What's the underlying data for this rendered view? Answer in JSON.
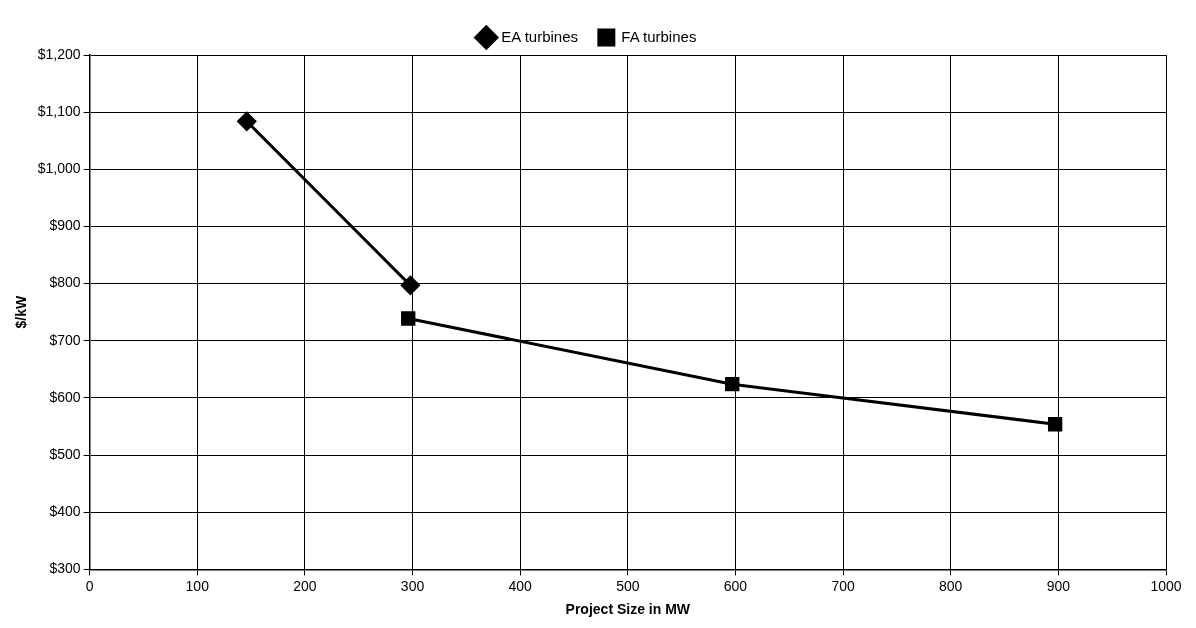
{
  "chart_data": {
    "type": "line",
    "xlabel": "Project Size in MW",
    "ylabel": "$/kW",
    "xlim": [
      0,
      1000
    ],
    "xticks": [
      0,
      100,
      200,
      300,
      400,
      500,
      600,
      700,
      800,
      900,
      1000
    ],
    "ylim": [
      300,
      1200
    ],
    "yticks": [
      {
        "value": 300,
        "label": "$300"
      },
      {
        "value": 400,
        "label": "$400"
      },
      {
        "value": 500,
        "label": "$500"
      },
      {
        "value": 600,
        "label": "$600"
      },
      {
        "value": 700,
        "label": "$700"
      },
      {
        "value": 800,
        "label": "$800"
      },
      {
        "value": 900,
        "label": "$900"
      },
      {
        "value": 1000,
        "label": "$1,000"
      },
      {
        "value": 1100,
        "label": "$1,100"
      },
      {
        "value": 1200,
        "label": "$1,200"
      }
    ],
    "grid": true,
    "legend": "top",
    "line_style": "solid",
    "series": [
      {
        "name": "EA turbines",
        "color": "#000000",
        "marker": "diamond",
        "x": [
          146,
          298
        ],
        "values": [
          1084,
          797
        ]
      },
      {
        "name": "FA turbines",
        "color": "#000000",
        "marker": "square",
        "x": [
          296,
          597,
          897
        ],
        "values": [
          739,
          624,
          554
        ]
      }
    ]
  }
}
